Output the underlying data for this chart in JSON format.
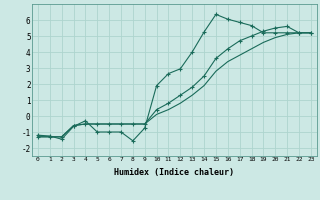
{
  "xlabel": "Humidex (Indice chaleur)",
  "xlim": [
    -0.5,
    23.5
  ],
  "ylim": [
    -2.5,
    7.0
  ],
  "xticks": [
    0,
    1,
    2,
    3,
    4,
    5,
    6,
    7,
    8,
    9,
    10,
    11,
    12,
    13,
    14,
    15,
    16,
    17,
    18,
    19,
    20,
    21,
    22,
    23
  ],
  "yticks": [
    -2,
    -1,
    0,
    1,
    2,
    3,
    4,
    5,
    6
  ],
  "bg_color": "#cce8e4",
  "line_color": "#1a6b5a",
  "grid_color": "#aed4ce",
  "line1_x": [
    0,
    1,
    2,
    3,
    4,
    5,
    6,
    7,
    8,
    9,
    10,
    11,
    12,
    13,
    14,
    15,
    16,
    17,
    18,
    19,
    20,
    21,
    22,
    23
  ],
  "line1_y": [
    -1.2,
    -1.25,
    -1.45,
    -0.65,
    -0.3,
    -1.0,
    -1.0,
    -1.0,
    -1.55,
    -0.75,
    1.9,
    2.65,
    2.95,
    4.0,
    5.25,
    6.35,
    6.05,
    5.85,
    5.65,
    5.2,
    5.2,
    5.2,
    5.2,
    5.2
  ],
  "line2_x": [
    0,
    1,
    2,
    3,
    4,
    5,
    6,
    7,
    8,
    9,
    10,
    11,
    12,
    13,
    14,
    15,
    16,
    17,
    18,
    19,
    20,
    21,
    22,
    23
  ],
  "line2_y": [
    -1.3,
    -1.3,
    -1.3,
    -0.6,
    -0.5,
    -0.5,
    -0.5,
    -0.5,
    -0.5,
    -0.5,
    0.4,
    0.8,
    1.3,
    1.8,
    2.5,
    3.6,
    4.2,
    4.7,
    5.0,
    5.3,
    5.5,
    5.6,
    5.2,
    5.2
  ],
  "line3_x": [
    0,
    1,
    2,
    3,
    4,
    5,
    6,
    7,
    8,
    9,
    10,
    11,
    12,
    13,
    14,
    15,
    16,
    17,
    18,
    19,
    20,
    21,
    22,
    23
  ],
  "line3_y": [
    -1.3,
    -1.3,
    -1.3,
    -0.6,
    -0.5,
    -0.5,
    -0.5,
    -0.5,
    -0.5,
    -0.5,
    0.1,
    0.4,
    0.8,
    1.3,
    1.9,
    2.8,
    3.4,
    3.8,
    4.2,
    4.6,
    4.9,
    5.1,
    5.2,
    5.2
  ]
}
